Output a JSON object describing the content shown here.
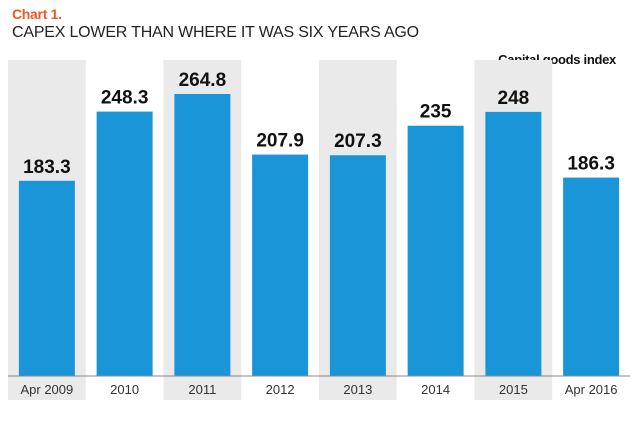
{
  "chart_label": "Chart 1.",
  "chart_data": {
    "type": "bar",
    "title": "CAPEX LOWER THAN WHERE IT WAS SIX YEARS AGO",
    "series_label": "Capital goods index",
    "categories": [
      "Apr 2009",
      "2010",
      "2011",
      "2012",
      "2013",
      "2014",
      "2015",
      "Apr 2016"
    ],
    "values": [
      183.3,
      248.3,
      264.8,
      207.9,
      207.3,
      235,
      248,
      186.3
    ],
    "value_labels": [
      "183.3",
      "248.3",
      "264.8",
      "207.9",
      "207.3",
      "235",
      "248",
      "186.3"
    ],
    "ylim": [
      0,
      300
    ],
    "grid": false,
    "xlabel": "",
    "ylabel": ""
  },
  "colors": {
    "bar": "#1a96d8",
    "accent": "#ee5a24",
    "shade": "#eaeaea",
    "axis": "#888888",
    "text": "#111111",
    "tick": "#333333"
  }
}
